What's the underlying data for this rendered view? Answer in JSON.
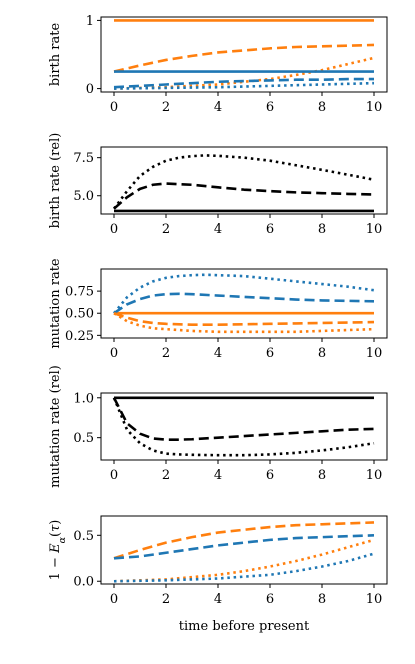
{
  "colors": {
    "blue": "#1f77b4",
    "orange": "#ff7f0e",
    "black": "#000000"
  },
  "chart_data": [
    {
      "type": "line",
      "ylabel": "birth rate",
      "xlim": [
        -0.5,
        10.5
      ],
      "ylim": [
        -0.05,
        1.05
      ],
      "xticks": [
        0,
        2,
        4,
        6,
        8,
        10
      ],
      "xtick_labels": [
        "0",
        "2",
        "4",
        "6",
        "8",
        "10"
      ],
      "yticks": [
        0,
        1
      ],
      "ytick_labels": [
        "0",
        "1"
      ],
      "series": [
        {
          "color": "orange",
          "style": "solid",
          "x": [
            0,
            10
          ],
          "y": [
            1.0,
            1.0
          ]
        },
        {
          "color": "orange",
          "style": "dashed",
          "x": [
            0,
            1,
            2,
            3,
            4,
            5,
            6,
            7,
            8,
            9,
            10
          ],
          "y": [
            0.25,
            0.34,
            0.42,
            0.48,
            0.53,
            0.56,
            0.59,
            0.61,
            0.62,
            0.63,
            0.64
          ]
        },
        {
          "color": "orange",
          "style": "dotted",
          "x": [
            0,
            2,
            4,
            6,
            7,
            8,
            9,
            10
          ],
          "y": [
            0.0,
            0.02,
            0.06,
            0.14,
            0.2,
            0.27,
            0.36,
            0.45
          ]
        },
        {
          "color": "blue",
          "style": "solid",
          "x": [
            0,
            10
          ],
          "y": [
            0.25,
            0.25
          ]
        },
        {
          "color": "blue",
          "style": "dashed",
          "x": [
            0,
            1,
            2,
            3,
            4,
            5,
            6,
            7,
            8,
            9,
            10
          ],
          "y": [
            0.02,
            0.04,
            0.06,
            0.08,
            0.1,
            0.11,
            0.12,
            0.13,
            0.13,
            0.14,
            0.14
          ]
        },
        {
          "color": "blue",
          "style": "dotted",
          "x": [
            0,
            2,
            4,
            6,
            8,
            10
          ],
          "y": [
            0.0,
            0.01,
            0.02,
            0.04,
            0.06,
            0.08
          ]
        }
      ]
    },
    {
      "type": "line",
      "ylabel": "birth rate (rel)",
      "xlim": [
        -0.5,
        10.5
      ],
      "ylim": [
        3.8,
        8.2
      ],
      "xticks": [
        0,
        2,
        4,
        6,
        8,
        10
      ],
      "xtick_labels": [
        "0",
        "2",
        "4",
        "6",
        "8",
        "10"
      ],
      "yticks": [
        5.0,
        7.5
      ],
      "ytick_labels": [
        "5.0",
        "7.5"
      ],
      "series": [
        {
          "color": "black",
          "style": "solid",
          "x": [
            0,
            10
          ],
          "y": [
            4.0,
            4.0
          ]
        },
        {
          "color": "black",
          "style": "dashed",
          "x": [
            0,
            0.5,
            1,
            1.5,
            2,
            3,
            4,
            5,
            6,
            7,
            8,
            9,
            10
          ],
          "y": [
            4.15,
            4.9,
            5.45,
            5.72,
            5.8,
            5.72,
            5.55,
            5.4,
            5.3,
            5.22,
            5.17,
            5.12,
            5.08
          ]
        },
        {
          "color": "black",
          "style": "dotted",
          "x": [
            0,
            0.5,
            1,
            1.5,
            2,
            2.5,
            3,
            3.5,
            4,
            5,
            6,
            7,
            8,
            9,
            10
          ],
          "y": [
            4.15,
            5.3,
            6.3,
            6.9,
            7.3,
            7.5,
            7.6,
            7.65,
            7.62,
            7.5,
            7.3,
            7.0,
            6.7,
            6.38,
            6.05
          ]
        }
      ]
    },
    {
      "type": "line",
      "ylabel": "mutation rate",
      "xlim": [
        -0.5,
        10.5
      ],
      "ylim": [
        0.22,
        1.0
      ],
      "xticks": [
        0,
        2,
        4,
        6,
        8,
        10
      ],
      "xtick_labels": [
        "0",
        "2",
        "4",
        "6",
        "8",
        "10"
      ],
      "yticks": [
        0.25,
        0.5,
        0.75
      ],
      "ytick_labels": [
        "0.25",
        "0.50",
        "0.75"
      ],
      "series": [
        {
          "color": "orange",
          "style": "solid",
          "x": [
            0,
            10
          ],
          "y": [
            0.5,
            0.5
          ]
        },
        {
          "color": "blue",
          "style": "dashed",
          "x": [
            0,
            0.5,
            1,
            1.5,
            2,
            2.5,
            3,
            4,
            5,
            6,
            7,
            8,
            9,
            10
          ],
          "y": [
            0.5,
            0.6,
            0.66,
            0.7,
            0.715,
            0.72,
            0.715,
            0.7,
            0.685,
            0.67,
            0.655,
            0.645,
            0.64,
            0.635
          ]
        },
        {
          "color": "blue",
          "style": "dotted",
          "x": [
            0,
            0.5,
            1,
            1.5,
            2,
            2.5,
            3,
            3.5,
            4,
            5,
            6,
            7,
            8,
            9,
            10
          ],
          "y": [
            0.5,
            0.68,
            0.79,
            0.86,
            0.9,
            0.92,
            0.93,
            0.935,
            0.93,
            0.92,
            0.89,
            0.86,
            0.83,
            0.8,
            0.76
          ]
        },
        {
          "color": "orange",
          "style": "dashed",
          "x": [
            0,
            0.5,
            1,
            1.5,
            2,
            3,
            4,
            5,
            6,
            7,
            8,
            9,
            10
          ],
          "y": [
            0.5,
            0.45,
            0.41,
            0.39,
            0.38,
            0.37,
            0.37,
            0.375,
            0.38,
            0.385,
            0.39,
            0.395,
            0.4
          ]
        },
        {
          "color": "orange",
          "style": "dotted",
          "x": [
            0,
            0.5,
            1,
            1.5,
            2,
            3,
            4,
            5,
            6,
            7,
            8,
            9,
            10
          ],
          "y": [
            0.5,
            0.41,
            0.36,
            0.33,
            0.32,
            0.3,
            0.29,
            0.29,
            0.29,
            0.29,
            0.3,
            0.31,
            0.32
          ]
        }
      ]
    },
    {
      "type": "line",
      "ylabel": "mutation rate (rel)",
      "xlim": [
        -0.5,
        10.5
      ],
      "ylim": [
        0.22,
        1.06
      ],
      "xticks": [
        0,
        2,
        4,
        6,
        8,
        10
      ],
      "xtick_labels": [
        "0",
        "2",
        "4",
        "6",
        "8",
        "10"
      ],
      "yticks": [
        0.5,
        1.0
      ],
      "ytick_labels": [
        "0.5",
        "1.0"
      ],
      "series": [
        {
          "color": "black",
          "style": "solid",
          "x": [
            0,
            10
          ],
          "y": [
            1.0,
            1.0
          ]
        },
        {
          "color": "black",
          "style": "dashed",
          "x": [
            0,
            0.5,
            1,
            1.5,
            2,
            2.5,
            3,
            4,
            5,
            6,
            7,
            8,
            9,
            10
          ],
          "y": [
            1.0,
            0.68,
            0.55,
            0.49,
            0.475,
            0.475,
            0.48,
            0.5,
            0.52,
            0.54,
            0.56,
            0.58,
            0.6,
            0.61
          ]
        },
        {
          "color": "black",
          "style": "dotted",
          "x": [
            0,
            0.5,
            1,
            1.5,
            2,
            2.5,
            3,
            4,
            5,
            6,
            7,
            8,
            9,
            10
          ],
          "y": [
            1.0,
            0.6,
            0.43,
            0.34,
            0.3,
            0.29,
            0.285,
            0.28,
            0.28,
            0.29,
            0.31,
            0.34,
            0.38,
            0.43
          ]
        }
      ]
    },
    {
      "type": "line",
      "ylabel": "1 − E_α(τ)",
      "xlabel": "time before present",
      "xlim": [
        -0.5,
        10.5
      ],
      "ylim": [
        -0.03,
        0.71
      ],
      "xticks": [
        0,
        2,
        4,
        6,
        8,
        10
      ],
      "xtick_labels": [
        "0",
        "2",
        "4",
        "6",
        "8",
        "10"
      ],
      "yticks": [
        0.0,
        0.5
      ],
      "ytick_labels": [
        "0.0",
        "0.5"
      ],
      "series": [
        {
          "color": "orange",
          "style": "dashed",
          "x": [
            0,
            1,
            2,
            3,
            4,
            5,
            6,
            7,
            8,
            9,
            10
          ],
          "y": [
            0.25,
            0.34,
            0.42,
            0.48,
            0.53,
            0.56,
            0.59,
            0.61,
            0.62,
            0.63,
            0.64
          ]
        },
        {
          "color": "blue",
          "style": "dashed",
          "x": [
            0,
            1,
            2,
            3,
            4,
            5,
            6,
            7,
            8,
            9,
            10
          ],
          "y": [
            0.25,
            0.27,
            0.31,
            0.35,
            0.39,
            0.42,
            0.45,
            0.47,
            0.48,
            0.49,
            0.5
          ]
        },
        {
          "color": "orange",
          "style": "dotted",
          "x": [
            0,
            2,
            4,
            5,
            6,
            7,
            8,
            9,
            10
          ],
          "y": [
            0.0,
            0.02,
            0.07,
            0.11,
            0.16,
            0.22,
            0.29,
            0.37,
            0.45
          ]
        },
        {
          "color": "blue",
          "style": "dotted",
          "x": [
            0,
            2,
            4,
            6,
            7,
            8,
            9,
            10
          ],
          "y": [
            0.0,
            0.01,
            0.03,
            0.07,
            0.11,
            0.16,
            0.22,
            0.3
          ]
        }
      ]
    }
  ]
}
